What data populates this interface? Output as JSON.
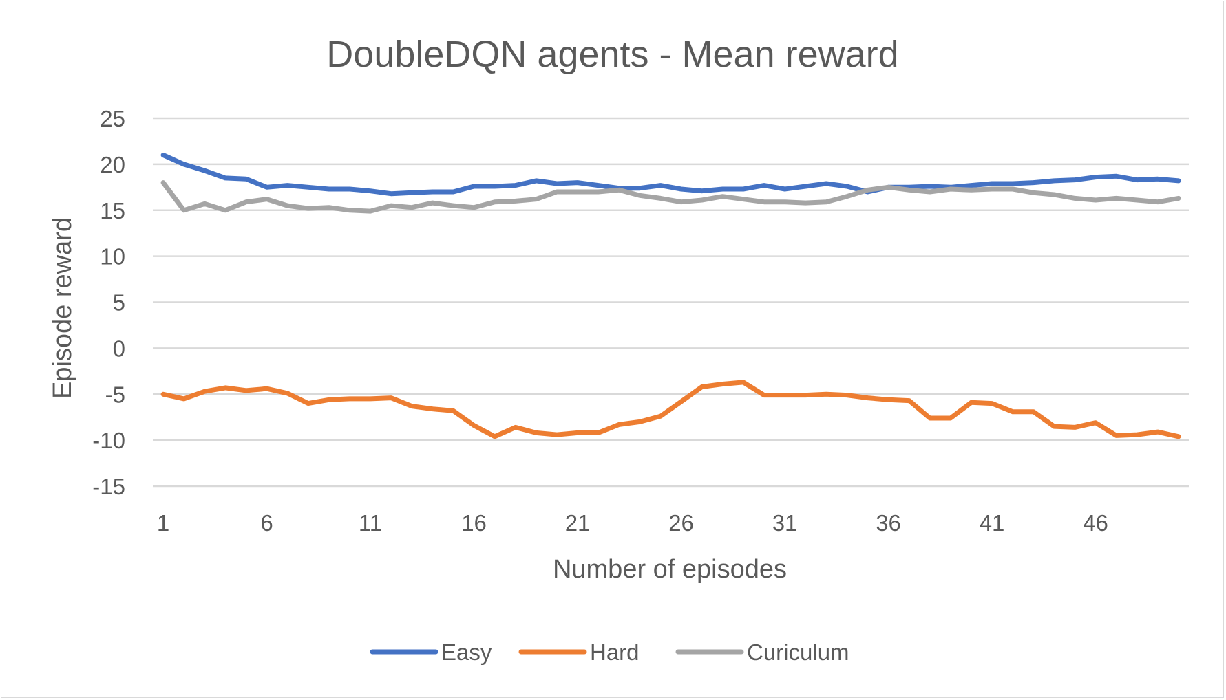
{
  "chart_data": {
    "type": "line",
    "title": "DoubleDQN agents - Mean reward",
    "xlabel": "Number of episodes",
    "ylabel": "Episode reward",
    "ylim": [
      -15,
      25
    ],
    "yticks": [
      25,
      20,
      15,
      10,
      5,
      0,
      -5,
      -10,
      -15
    ],
    "xticks": [
      1,
      6,
      11,
      16,
      21,
      26,
      31,
      36,
      41,
      46
    ],
    "x": [
      1,
      2,
      3,
      4,
      5,
      6,
      7,
      8,
      9,
      10,
      11,
      12,
      13,
      14,
      15,
      16,
      17,
      18,
      19,
      20,
      21,
      22,
      23,
      24,
      25,
      26,
      27,
      28,
      29,
      30,
      31,
      32,
      33,
      34,
      35,
      36,
      37,
      38,
      39,
      40,
      41,
      42,
      43,
      44,
      45,
      46,
      47,
      48,
      49,
      50
    ],
    "grid": true,
    "legend_position": "bottom",
    "series": [
      {
        "name": "Easy",
        "color": "#4472C4",
        "values": [
          21.0,
          20.0,
          19.3,
          18.5,
          18.4,
          17.5,
          17.7,
          17.5,
          17.3,
          17.3,
          17.1,
          16.8,
          16.9,
          17.0,
          17.0,
          17.6,
          17.6,
          17.7,
          18.2,
          17.9,
          18.0,
          17.7,
          17.4,
          17.4,
          17.7,
          17.3,
          17.1,
          17.3,
          17.3,
          17.7,
          17.3,
          17.6,
          17.9,
          17.6,
          17.0,
          17.5,
          17.5,
          17.6,
          17.5,
          17.7,
          17.9,
          17.9,
          18.0,
          18.2,
          18.3,
          18.6,
          18.7,
          18.3,
          18.4,
          18.2
        ]
      },
      {
        "name": "Hard",
        "color": "#ED7D31",
        "values": [
          -5.0,
          -5.5,
          -4.7,
          -4.3,
          -4.6,
          -4.4,
          -4.9,
          -6.0,
          -5.6,
          -5.5,
          -5.5,
          -5.4,
          -6.3,
          -6.6,
          -6.8,
          -8.4,
          -9.6,
          -8.6,
          -9.2,
          -9.4,
          -9.2,
          -9.2,
          -8.3,
          -8.0,
          -7.4,
          -5.8,
          -4.2,
          -3.9,
          -3.7,
          -5.1,
          -5.1,
          -5.1,
          -5.0,
          -5.1,
          -5.4,
          -5.6,
          -5.7,
          -7.6,
          -7.6,
          -5.9,
          -6.0,
          -6.9,
          -6.9,
          -8.5,
          -8.6,
          -8.1,
          -9.5,
          -9.4,
          -9.1,
          -9.6
        ]
      },
      {
        "name": "Curiculum",
        "color": "#A5A5A5",
        "values": [
          18.0,
          15.0,
          15.7,
          15.0,
          15.9,
          16.2,
          15.5,
          15.2,
          15.3,
          15.0,
          14.9,
          15.5,
          15.3,
          15.8,
          15.5,
          15.3,
          15.9,
          16.0,
          16.2,
          17.0,
          17.0,
          17.0,
          17.2,
          16.6,
          16.3,
          15.9,
          16.1,
          16.5,
          16.2,
          15.9,
          15.9,
          15.8,
          15.9,
          16.5,
          17.2,
          17.5,
          17.2,
          17.0,
          17.3,
          17.2,
          17.3,
          17.3,
          16.9,
          16.7,
          16.3,
          16.1,
          16.3,
          16.1,
          15.9,
          16.3
        ]
      }
    ]
  }
}
